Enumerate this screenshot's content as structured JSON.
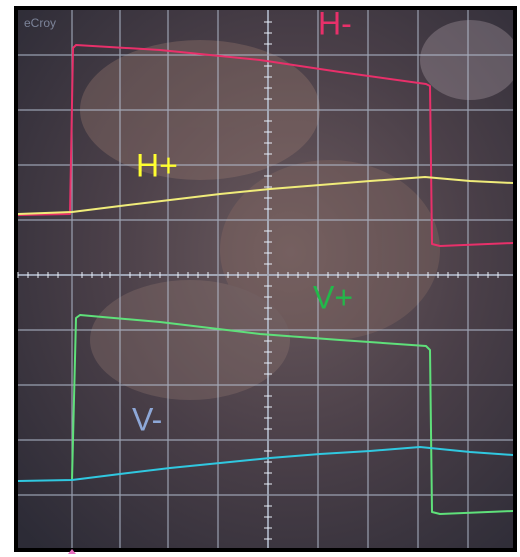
{
  "screen": {
    "brand": "eCroy"
  },
  "traces": [
    {
      "label": "H-"
    },
    {
      "label": "H+"
    },
    {
      "label": "V+"
    },
    {
      "label": "V-"
    }
  ]
}
